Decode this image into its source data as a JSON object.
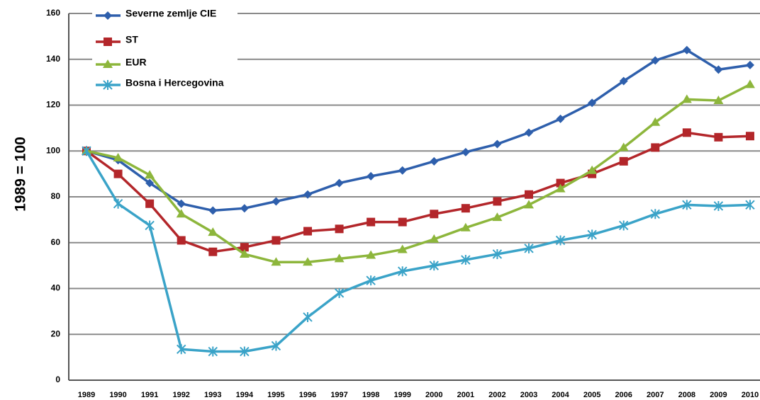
{
  "chart_data": {
    "type": "line",
    "y_label": "1989 = 100",
    "categories": [
      "1989",
      "1990",
      "1991",
      "1992",
      "1993",
      "1994",
      "1995",
      "1996",
      "1997",
      "1998",
      "1999",
      "2000",
      "2001",
      "2002",
      "2003",
      "2004",
      "2005",
      "2006",
      "2007",
      "2008",
      "2009",
      "2010"
    ],
    "series": [
      {
        "name": "Severne zemlje CIE",
        "color": "#2e5fac",
        "marker": "diamond",
        "values": [
          100,
          96,
          86,
          77,
          74,
          75,
          78,
          81,
          86,
          89,
          91.5,
          95.5,
          99.5,
          103,
          108,
          114,
          121,
          130.5,
          139.5,
          144,
          135.5,
          137.5
        ]
      },
      {
        "name": "ST",
        "color": "#b3262a",
        "marker": "square",
        "values": [
          100,
          90,
          77,
          61,
          56,
          58,
          61,
          65,
          66,
          69,
          69,
          72.5,
          75,
          78,
          81,
          86,
          90,
          95.5,
          101.5,
          108,
          106,
          106.5
        ]
      },
      {
        "name": "EUR",
        "color": "#8db63c",
        "marker": "triangle",
        "values": [
          100,
          97,
          89.5,
          72.5,
          64.5,
          55,
          51.5,
          51.5,
          53,
          54.5,
          57,
          61.5,
          66.5,
          71,
          76.5,
          83.5,
          91.5,
          101.5,
          112.5,
          122.5,
          122,
          129
        ]
      },
      {
        "name": "Bosna i Hercegovina",
        "color": "#3aa3c8",
        "marker": "star",
        "values": [
          100,
          77,
          67.5,
          13.5,
          12.5,
          12.5,
          15,
          27.5,
          38,
          43.5,
          47.5,
          50,
          52.5,
          55,
          57.5,
          61,
          63.5,
          67.5,
          72.5,
          76.5,
          76,
          76.5
        ]
      }
    ],
    "ylim": [
      0,
      160
    ],
    "yticks": [
      0,
      20,
      40,
      60,
      80,
      100,
      120,
      140,
      160
    ],
    "grid": true
  }
}
